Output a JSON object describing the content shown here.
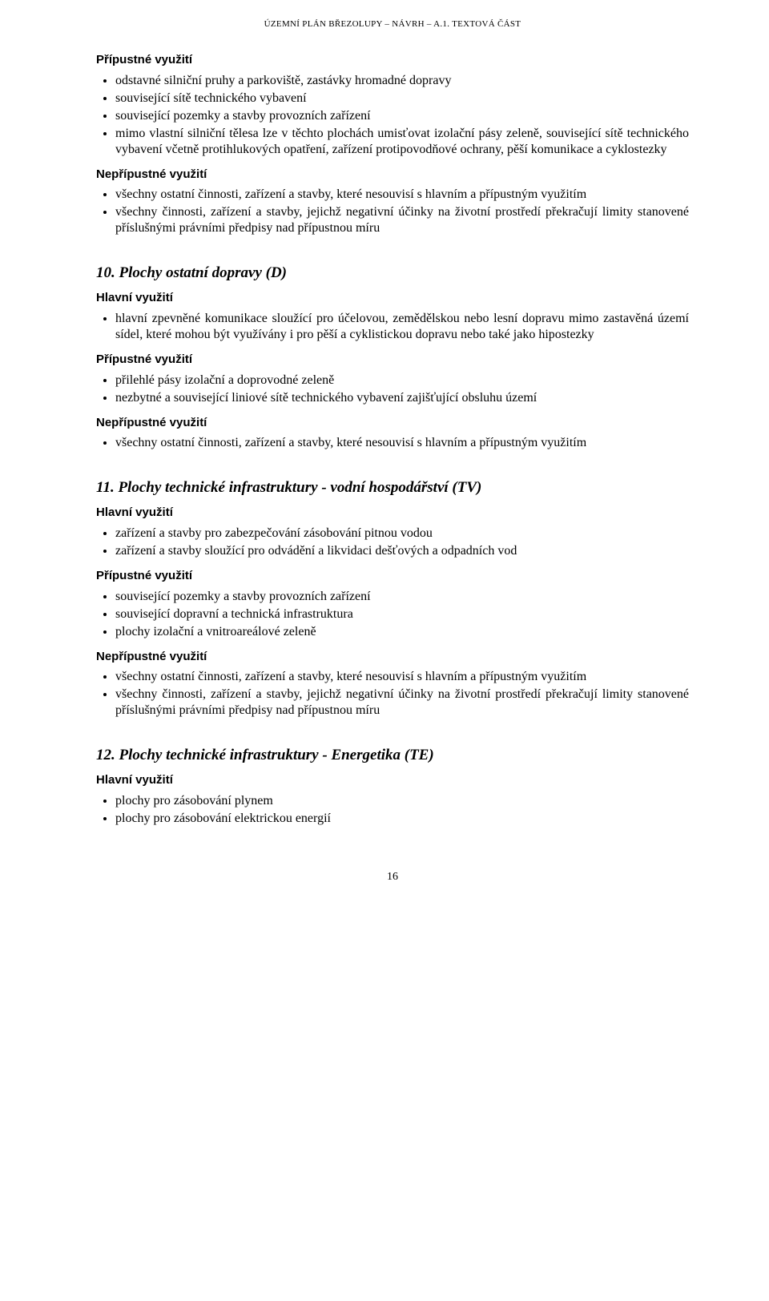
{
  "header": {
    "text": "ÚZEMNÍ PLÁN BŘEZOLUPY – NÁVRH – A.1. TEXTOVÁ ČÁST"
  },
  "top_block": {
    "pripustne_label": "Přípustné využití",
    "pripustne_items": [
      "odstavné silniční pruhy a parkoviště, zastávky hromadné dopravy",
      "související sítě technického vybavení",
      "související pozemky a stavby provozních zařízení",
      "mimo vlastní silniční tělesa lze v těchto plochách umisťovat izolační pásy zeleně, související sítě technického vybavení včetně protihlukových opatření, zařízení protipovodňové ochrany, pěší komunikace a cyklostezky"
    ],
    "nepripustne_label": "Nepřípustné využití",
    "nepripustne_items": [
      "všechny ostatní činnosti, zařízení a stavby, které nesouvisí s hlavním a přípustným využitím",
      "všechny činnosti, zařízení a stavby, jejichž negativní účinky na životní prostředí překračují limity stanovené příslušnými právními předpisy nad přípustnou míru"
    ]
  },
  "sections": {
    "s10": {
      "title": "10. Plochy ostatní dopravy (D)",
      "hlavni_label": "Hlavní využití",
      "hlavni_items": [
        "hlavní zpevněné komunikace sloužící pro účelovou, zemědělskou nebo lesní dopravu mimo zastavěná území sídel, které mohou být využívány i pro pěší a cyklistickou dopravu nebo také jako hipostezky"
      ],
      "pripustne_label": "Přípustné využití",
      "pripustne_items": [
        "přilehlé pásy izolační a doprovodné zeleně",
        "nezbytné a související liniové sítě technického vybavení zajišťující obsluhu území"
      ],
      "nepripustne_label": "Nepřípustné využití",
      "nepripustne_items": [
        "všechny ostatní činnosti, zařízení a stavby, které nesouvisí s hlavním a přípustným využitím"
      ]
    },
    "s11": {
      "title": "11. Plochy technické infrastruktury - vodní hospodářství (TV)",
      "hlavni_label": "Hlavní využití",
      "hlavni_items": [
        "zařízení a stavby pro zabezpečování zásobování pitnou vodou",
        "zařízení a stavby sloužící pro odvádění a likvidaci dešťových a odpadních vod"
      ],
      "pripustne_label": "Přípustné využití",
      "pripustne_items": [
        "související pozemky a stavby provozních zařízení",
        "související dopravní a technická infrastruktura",
        "plochy izolační a vnitroareálové zeleně"
      ],
      "nepripustne_label": "Nepřípustné využití",
      "nepripustne_items": [
        "všechny ostatní činnosti, zařízení a stavby, které nesouvisí s hlavním a přípustným využitím",
        "všechny činnosti, zařízení a stavby, jejichž negativní účinky na životní prostředí překračují limity stanovené příslušnými právními předpisy nad přípustnou míru"
      ]
    },
    "s12": {
      "title": "12. Plochy technické infrastruktury - Energetika (TE)",
      "hlavni_label": "Hlavní využití",
      "hlavni_items": [
        "plochy pro zásobování plynem",
        "plochy pro zásobování elektrickou energií"
      ]
    }
  },
  "page_number": "16"
}
